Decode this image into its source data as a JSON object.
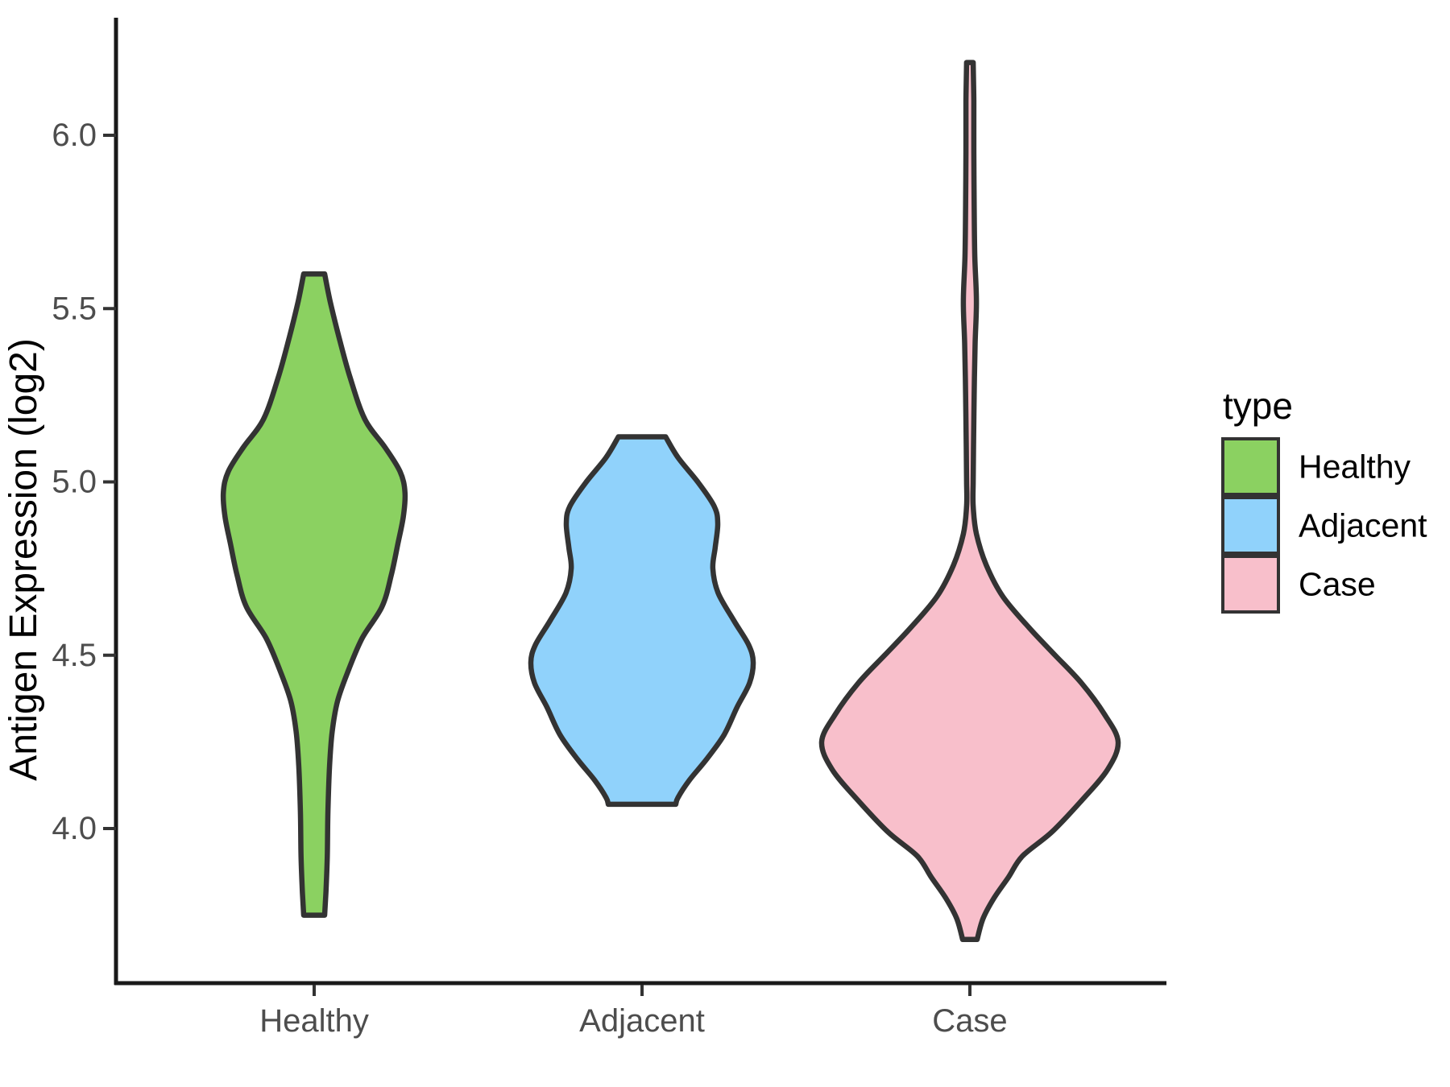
{
  "figure": {
    "background": "#FFFFFF"
  },
  "chart_data": {
    "type": "violin",
    "title": "",
    "xlabel": "",
    "ylabel": "Antigen Expression (log2)",
    "categories": [
      "Healthy",
      "Adjacent",
      "Case"
    ],
    "y_ticks": [
      6.0,
      5.5,
      5.0,
      4.5,
      4.0
    ],
    "y_tick_labels": [
      "6.0",
      "5.5",
      "5.0",
      "4.5",
      "4.0"
    ],
    "ylim": [
      3.55,
      6.35
    ],
    "grid": "off",
    "legend_position": "right",
    "colors": {
      "outline": "#333333",
      "axis_line": "#1a1a1a",
      "tick_mark": "#333333",
      "tick_text": "#4d4d4d",
      "title_text": "#000000"
    },
    "series": [
      {
        "name": "Healthy",
        "color": "#8BD161",
        "min": 3.75,
        "max": 5.6,
        "profile": [
          [
            5.6,
            0.032
          ],
          [
            5.52,
            0.049
          ],
          [
            5.42,
            0.075
          ],
          [
            5.3,
            0.11
          ],
          [
            5.18,
            0.155
          ],
          [
            5.1,
            0.216
          ],
          [
            5.03,
            0.262
          ],
          [
            4.97,
            0.277
          ],
          [
            4.9,
            0.272
          ],
          [
            4.82,
            0.255
          ],
          [
            4.73,
            0.235
          ],
          [
            4.64,
            0.207
          ],
          [
            4.55,
            0.147
          ],
          [
            4.46,
            0.106
          ],
          [
            4.37,
            0.072
          ],
          [
            4.28,
            0.055
          ],
          [
            4.18,
            0.047
          ],
          [
            4.05,
            0.042
          ],
          [
            3.92,
            0.04
          ],
          [
            3.82,
            0.036
          ],
          [
            3.75,
            0.032
          ]
        ]
      },
      {
        "name": "Adjacent",
        "color": "#90D2FB",
        "min": 4.07,
        "max": 5.13,
        "profile": [
          [
            5.13,
            0.072
          ],
          [
            5.07,
            0.11
          ],
          [
            5.0,
            0.17
          ],
          [
            4.93,
            0.22
          ],
          [
            4.88,
            0.231
          ],
          [
            4.81,
            0.223
          ],
          [
            4.75,
            0.216
          ],
          [
            4.68,
            0.232
          ],
          [
            4.6,
            0.28
          ],
          [
            4.53,
            0.325
          ],
          [
            4.48,
            0.339
          ],
          [
            4.42,
            0.328
          ],
          [
            4.35,
            0.29
          ],
          [
            4.27,
            0.25
          ],
          [
            4.2,
            0.197
          ],
          [
            4.14,
            0.145
          ],
          [
            4.09,
            0.11
          ],
          [
            4.07,
            0.103
          ]
        ]
      },
      {
        "name": "Case",
        "color": "#F8BFCB",
        "min": 3.68,
        "max": 6.21,
        "profile": [
          [
            6.21,
            0.01
          ],
          [
            6.1,
            0.012
          ],
          [
            5.95,
            0.012
          ],
          [
            5.8,
            0.013
          ],
          [
            5.65,
            0.015
          ],
          [
            5.52,
            0.02
          ],
          [
            5.4,
            0.016
          ],
          [
            5.25,
            0.013
          ],
          [
            5.1,
            0.011
          ],
          [
            5.0,
            0.01
          ],
          [
            4.93,
            0.01
          ],
          [
            4.85,
            0.02
          ],
          [
            4.76,
            0.05
          ],
          [
            4.67,
            0.1
          ],
          [
            4.58,
            0.18
          ],
          [
            4.5,
            0.26
          ],
          [
            4.42,
            0.34
          ],
          [
            4.33,
            0.41
          ],
          [
            4.25,
            0.452
          ],
          [
            4.17,
            0.42
          ],
          [
            4.08,
            0.34
          ],
          [
            3.99,
            0.25
          ],
          [
            3.92,
            0.16
          ],
          [
            3.86,
            0.118
          ],
          [
            3.8,
            0.074
          ],
          [
            3.74,
            0.04
          ],
          [
            3.68,
            0.022
          ]
        ]
      }
    ]
  },
  "legend": {
    "title": "type",
    "items": [
      {
        "label": "Healthy",
        "color": "#8BD161"
      },
      {
        "label": "Adjacent",
        "color": "#90D2FB"
      },
      {
        "label": "Case",
        "color": "#F8BFCB"
      }
    ]
  }
}
